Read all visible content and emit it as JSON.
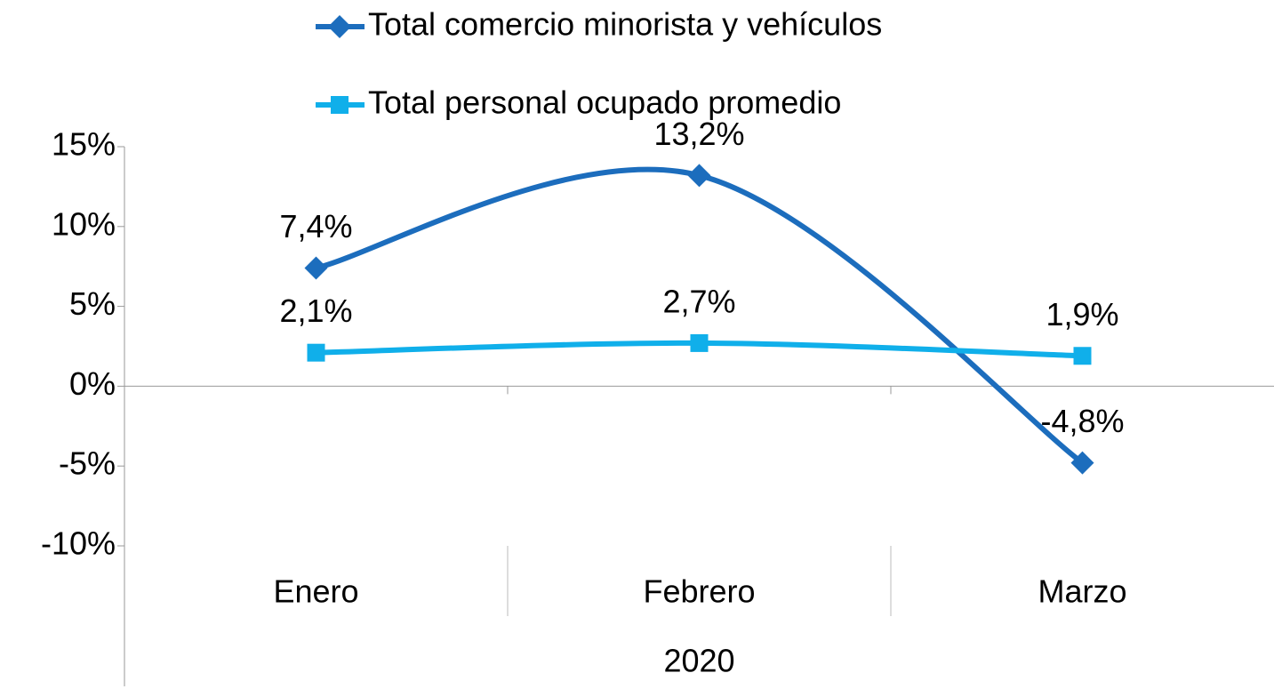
{
  "chart_data": {
    "type": "line",
    "categories": [
      "Enero",
      "Febrero",
      "Marzo"
    ],
    "group_label": "2020",
    "series": [
      {
        "name": "Total comercio minorista y vehículos",
        "color": "#1c6dbd",
        "marker": "diamond",
        "values": [
          7.4,
          13.2,
          -4.8
        ],
        "value_labels": [
          "7,4%",
          "13,2%",
          "-4,8%"
        ]
      },
      {
        "name": "Total personal ocupado promedio",
        "color": "#10afea",
        "marker": "square",
        "values": [
          2.1,
          2.7,
          1.9
        ],
        "value_labels": [
          "2,1%",
          "2,7%",
          "1,9%"
        ]
      }
    ],
    "ylim": [
      -10,
      15
    ],
    "yticks": [
      {
        "value": -10,
        "label": "-10%"
      },
      {
        "value": -5,
        "label": "-5%"
      },
      {
        "value": 0,
        "label": "0%"
      },
      {
        "value": 5,
        "label": "5%"
      },
      {
        "value": 10,
        "label": "10%"
      },
      {
        "value": 15,
        "label": "15%"
      }
    ],
    "smooth": true,
    "grid": false,
    "legend": "top"
  }
}
